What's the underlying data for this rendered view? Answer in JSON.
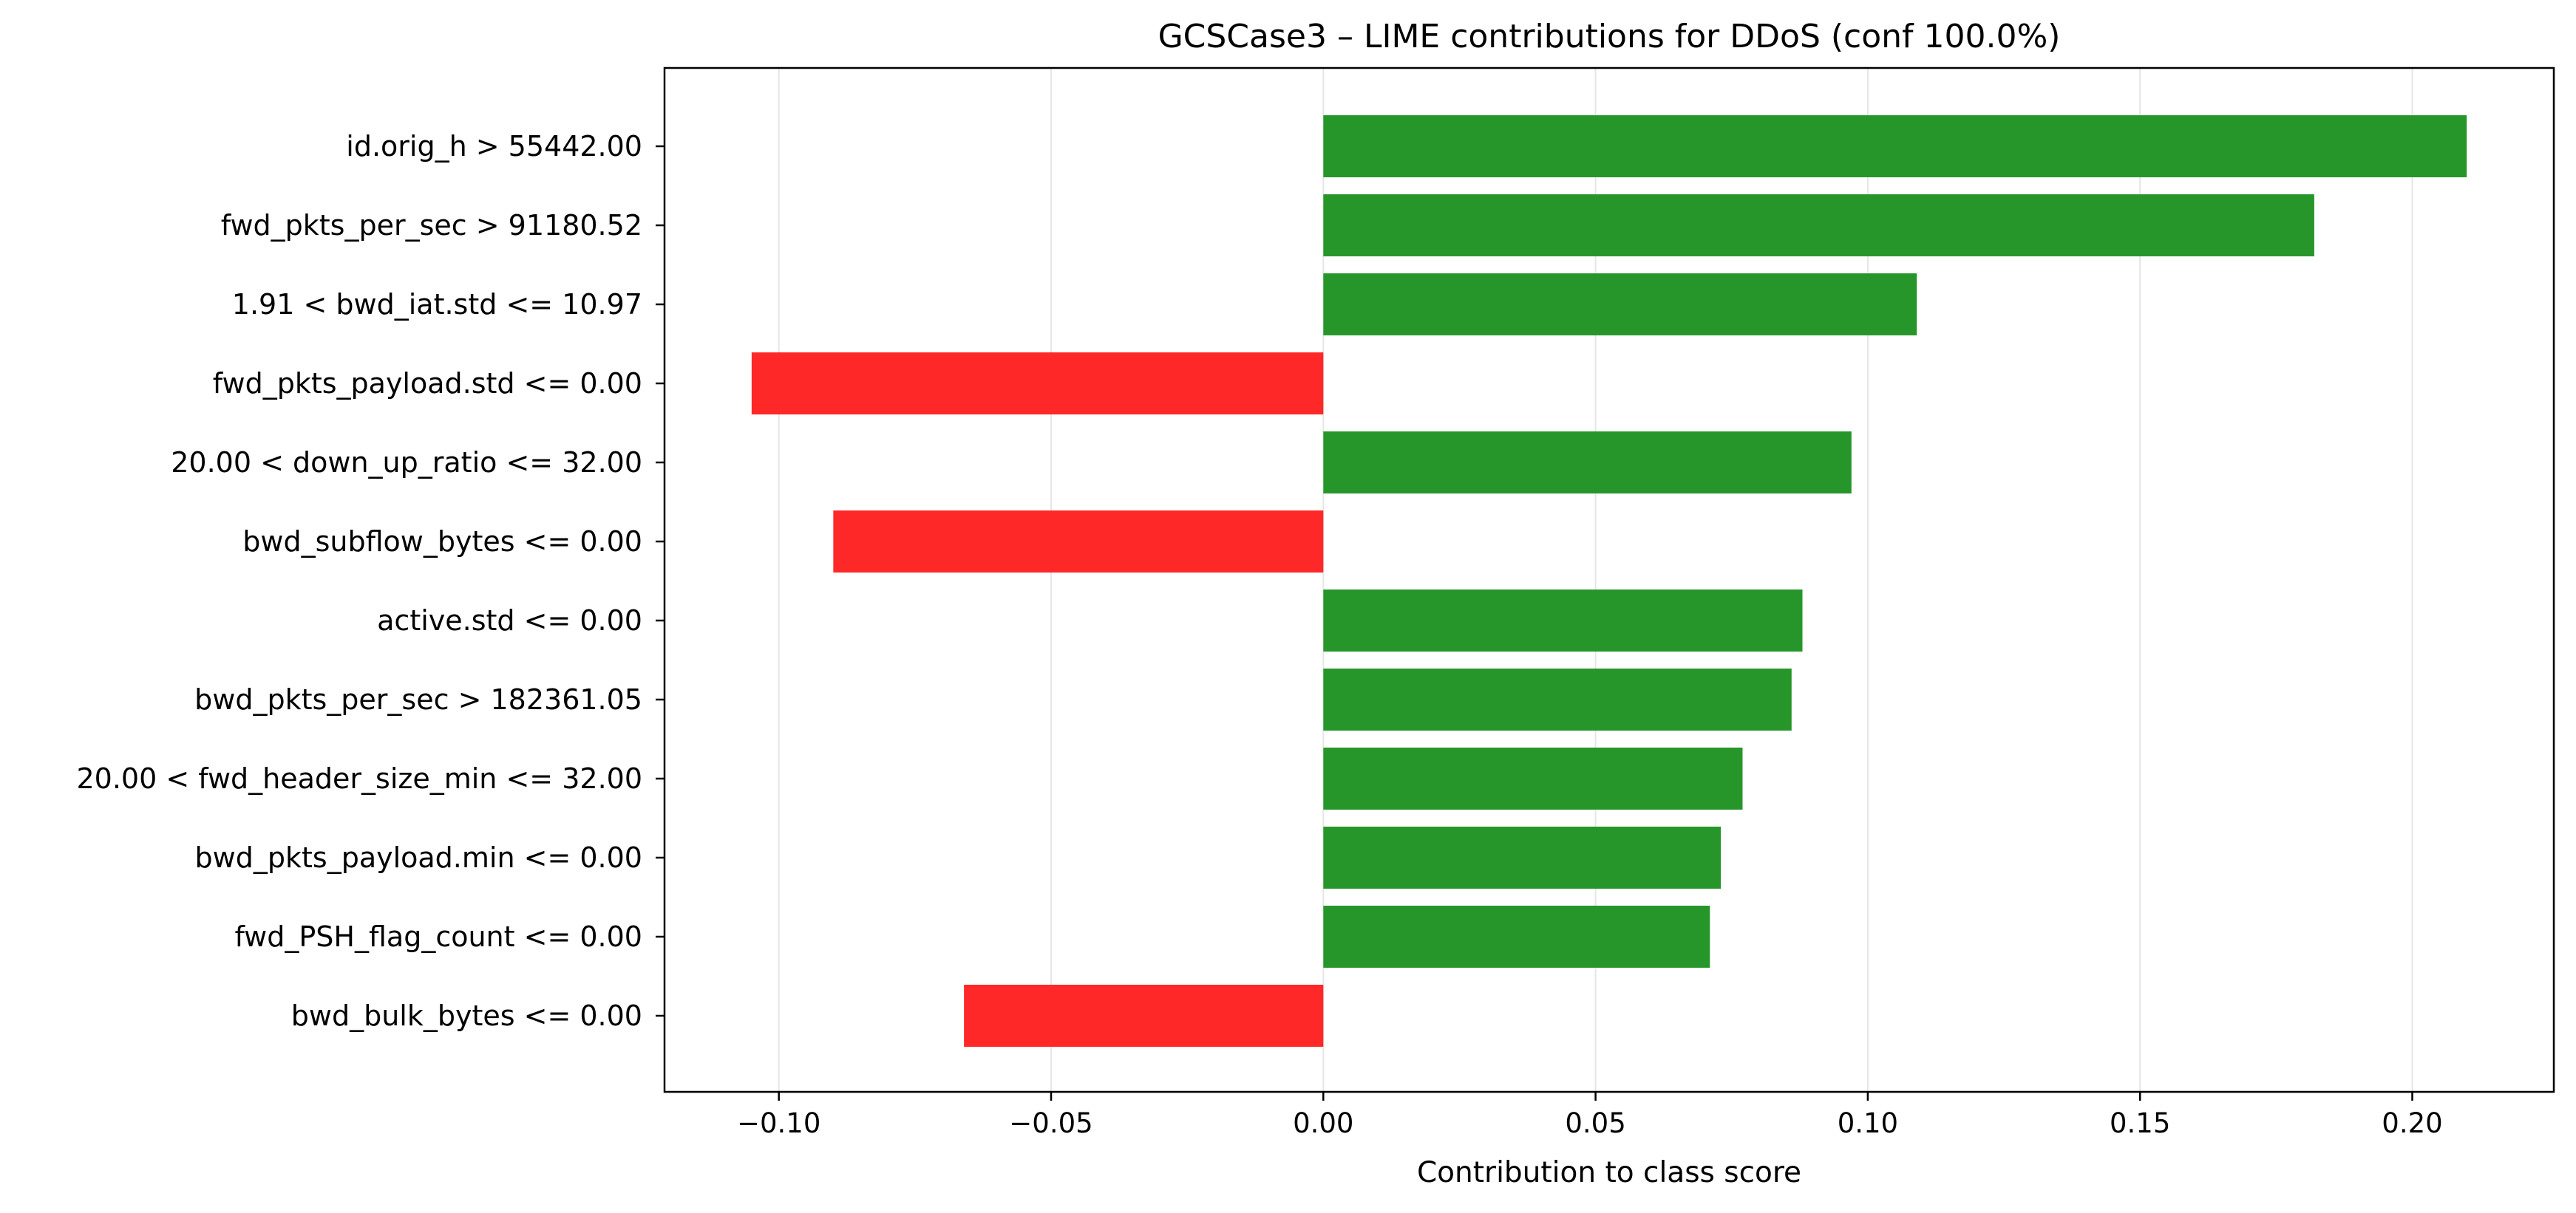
{
  "chart_data": {
    "type": "bar",
    "orientation": "horizontal",
    "title": "GCSCase3 – LIME contributions for DDoS (conf 100.0%)",
    "xlabel": "Contribution to class score",
    "ylabel": "",
    "xlim": [
      -0.121,
      0.226
    ],
    "xticks": [
      -0.1,
      -0.05,
      0.0,
      0.05,
      0.1,
      0.15,
      0.2
    ],
    "xtick_labels": [
      "−0.10",
      "−0.05",
      "0.00",
      "0.05",
      "0.10",
      "0.15",
      "0.20"
    ],
    "grid": "vertical",
    "legend": "none",
    "colors": {
      "positive": "#27962a",
      "negative": "#fe2828",
      "grid": "#e6e6e6",
      "axis": "#000000"
    },
    "categories": [
      "id.orig_h > 55442.00",
      "fwd_pkts_per_sec > 91180.52",
      "1.91 < bwd_iat.std <= 10.97",
      "fwd_pkts_payload.std <= 0.00",
      "20.00 < down_up_ratio <= 32.00",
      "bwd_subflow_bytes <= 0.00",
      "active.std <= 0.00",
      "bwd_pkts_per_sec > 182361.05",
      "20.00 < fwd_header_size_min <= 32.00",
      "bwd_pkts_payload.min <= 0.00",
      "fwd_PSH_flag_count <= 0.00",
      "bwd_bulk_bytes <= 0.00"
    ],
    "values": [
      0.21,
      0.182,
      0.109,
      -0.105,
      0.097,
      -0.09,
      0.088,
      0.086,
      0.077,
      0.073,
      0.071,
      -0.066
    ]
  }
}
